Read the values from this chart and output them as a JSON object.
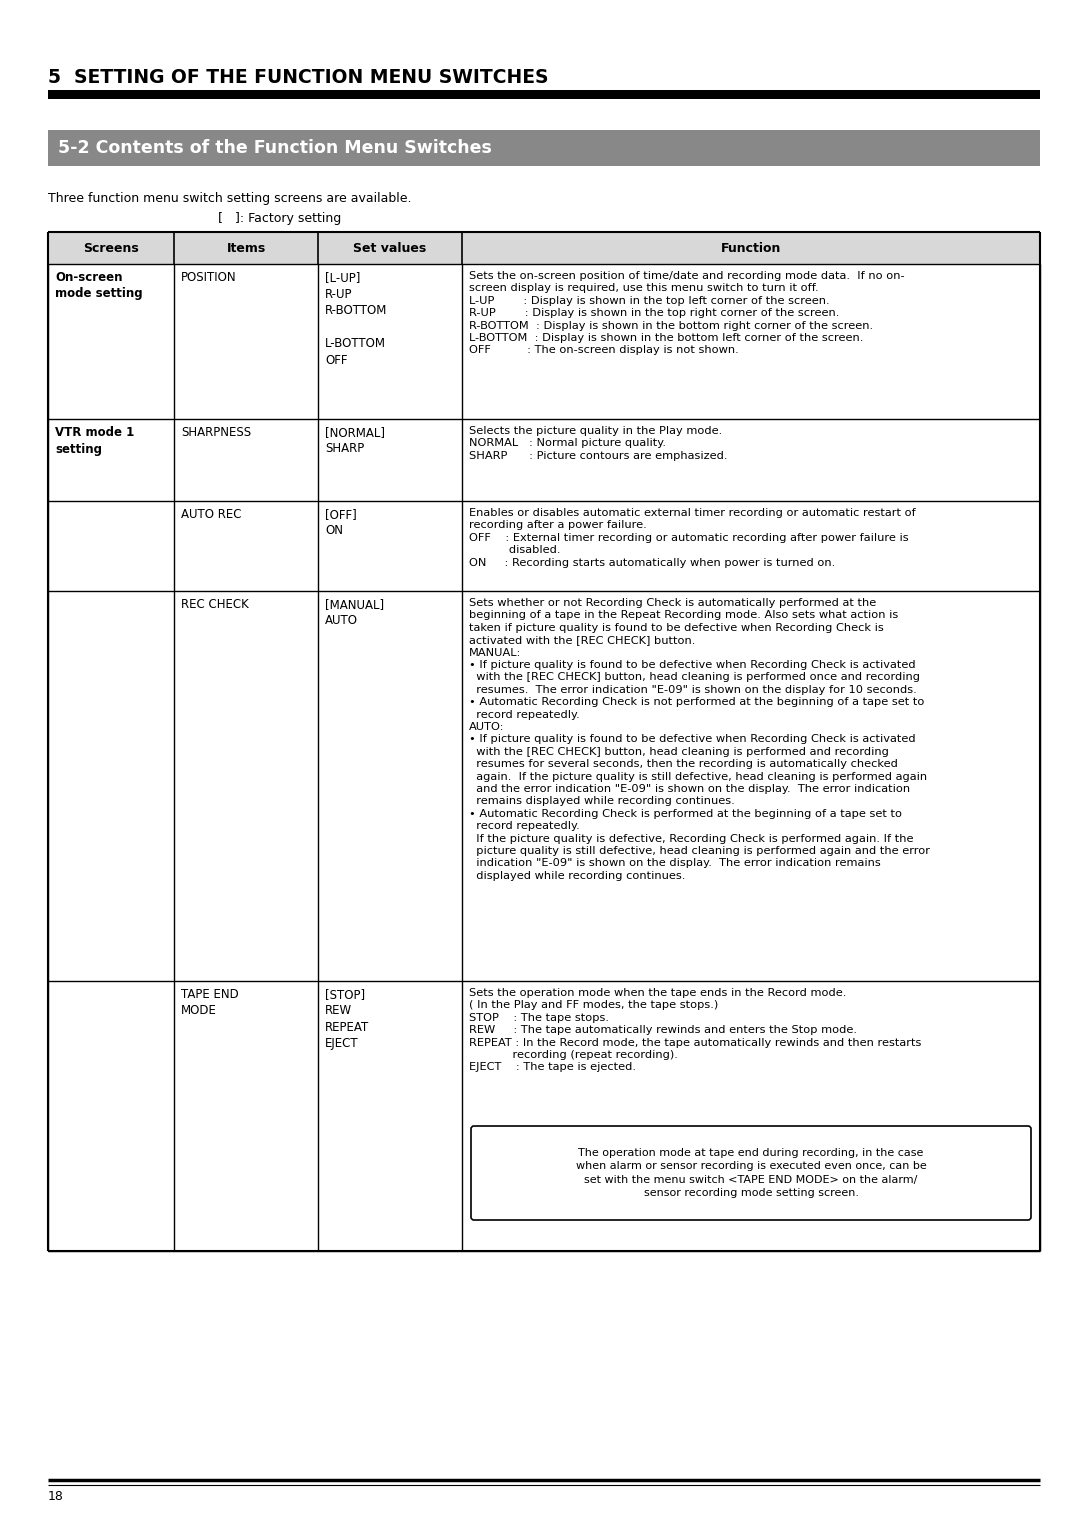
{
  "page_title": "5  SETTING OF THE FUNCTION MENU SWITCHES",
  "section_title": "5-2 Contents of the Function Menu Switches",
  "intro_text": "Three function menu switch setting screens are available.",
  "factory_note": "[   ]: Factory setting",
  "page_number": "18",
  "bg_color": "#ffffff",
  "section_bg": "#888888",
  "table_header": [
    "Screens",
    "Items",
    "Set values",
    "Function"
  ],
  "note_box_text": "The operation mode at tape end during recording, in the case\nwhen alarm or sensor recording is executed even once, can be\nset with the menu switch <TAPE END MODE> on the alarm/\nsensor recording mode setting screen.",
  "rows": [
    {
      "screen": "On-screen\nmode setting",
      "item": "POSITION",
      "set_values": "[L-UP]\nR-UP\nR-BOTTOM\n\nL-BOTTOM\nOFF",
      "function": "Sets the on-screen position of time/date and recording mode data.  If no on-\nscreen display is required, use this menu switch to turn it off.\nL-UP        : Display is shown in the top left corner of the screen.\nR-UP        : Display is shown in the top right corner of the screen.\nR-BOTTOM  : Display is shown in the bottom right corner of the screen.\nL-BOTTOM  : Display is shown in the bottom left corner of the screen.\nOFF          : The on-screen display is not shown.",
      "screen_bold": true
    },
    {
      "screen": "VTR mode 1\nsetting",
      "item": "SHARPNESS",
      "set_values": "[NORMAL]\nSHARP",
      "function": "Selects the picture quality in the Play mode.\nNORMAL   : Normal picture quality.\nSHARP      : Picture contours are emphasized.",
      "screen_bold": true
    },
    {
      "screen": "",
      "item": "AUTO REC",
      "set_values": "[OFF]\nON",
      "function": "Enables or disables automatic external timer recording or automatic restart of\nrecording after a power failure.\nOFF    : External timer recording or automatic recording after power failure is\n           disabled.\nON     : Recording starts automatically when power is turned on.",
      "screen_bold": false
    },
    {
      "screen": "",
      "item": "REC CHECK",
      "set_values": "[MANUAL]\nAUTO",
      "function": "Sets whether or not Recording Check is automatically performed at the\nbeginning of a tape in the Repeat Recording mode. Also sets what action is\ntaken if picture quality is found to be defective when Recording Check is\nactivated with the [REC CHECK] button.\nMANUAL:\n• If picture quality is found to be defective when Recording Check is activated\n  with the [REC CHECK] button, head cleaning is performed once and recording\n  resumes.  The error indication \"E-09\" is shown on the display for 10 seconds.\n• Automatic Recording Check is not performed at the beginning of a tape set to\n  record repeatedly.\nAUTO:\n• If picture quality is found to be defective when Recording Check is activated\n  with the [REC CHECK] button, head cleaning is performed and recording\n  resumes for several seconds, then the recording is automatically checked\n  again.  If the picture quality is still defective, head cleaning is performed again\n  and the error indication \"E-09\" is shown on the display.  The error indication\n  remains displayed while recording continues.\n• Automatic Recording Check is performed at the beginning of a tape set to\n  record repeatedly.\n  If the picture quality is defective, Recording Check is performed again. If the\n  picture quality is still defective, head cleaning is performed again and the error\n  indication \"E-09\" is shown on the display.  The error indication remains\n  displayed while recording continues.",
      "screen_bold": false
    },
    {
      "screen": "",
      "item": "TAPE END\nMODE",
      "set_values": "[STOP]\nREW\nREPEAT\nEJECT",
      "function": "Sets the operation mode when the tape ends in the Record mode.\n( In the Play and FF modes, the tape stops.)\nSTOP    : The tape stops.\nREW     : The tape automatically rewinds and enters the Stop mode.\nREPEAT : In the Record mode, the tape automatically rewinds and then restarts\n            recording (repeat recording).\nEJECT    : The tape is ejected.",
      "screen_bold": false
    }
  ]
}
